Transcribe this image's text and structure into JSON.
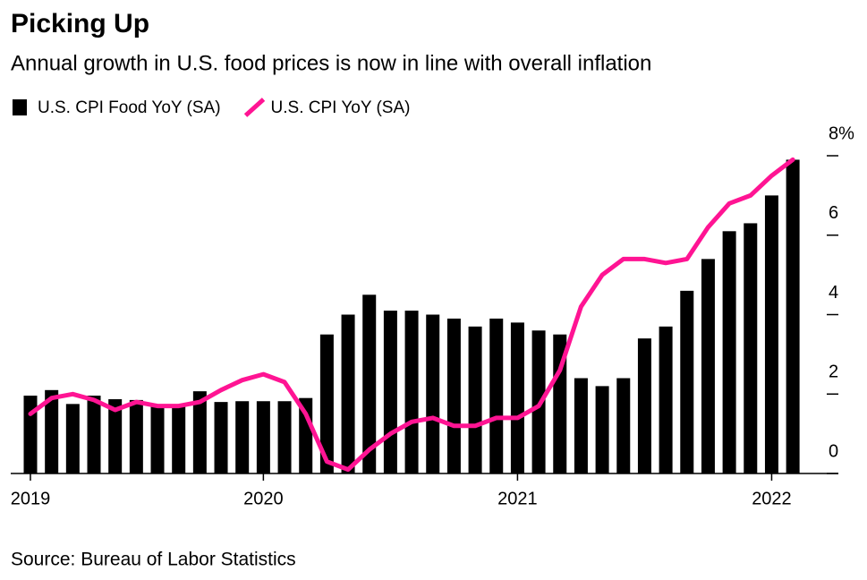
{
  "chart_data": {
    "type": "bar_line",
    "title": "Picking Up",
    "subtitle": "Annual growth in U.S. food prices is now in line with overall inflation",
    "source": "Source: Bureau of Labor Statistics",
    "categories": [
      "2019",
      null,
      null,
      null,
      null,
      null,
      null,
      null,
      null,
      null,
      null,
      "2020",
      null,
      null,
      null,
      null,
      null,
      null,
      null,
      null,
      null,
      null,
      null,
      "2021",
      null,
      null,
      null,
      null,
      null,
      null,
      null,
      null,
      null,
      null,
      null,
      "2022",
      null
    ],
    "series": [
      {
        "name": "U.S. CPI Food YoY (SA)",
        "type": "bar",
        "color": "#000000",
        "values": [
          1.96,
          2.1,
          1.75,
          1.96,
          1.87,
          1.85,
          1.73,
          1.73,
          2.07,
          1.8,
          1.82,
          1.82,
          1.82,
          1.9,
          3.5,
          4.0,
          4.5,
          4.1,
          4.1,
          4.0,
          3.9,
          3.7,
          3.9,
          3.8,
          3.6,
          3.5,
          2.4,
          2.2,
          2.4,
          3.4,
          3.7,
          4.6,
          5.4,
          6.1,
          6.3,
          7.0,
          7.9
        ]
      },
      {
        "name": "U.S. CPI YoY (SA)",
        "type": "line",
        "color": "#ff1493",
        "values": [
          1.5,
          1.9,
          2.0,
          1.85,
          1.6,
          1.8,
          1.7,
          1.7,
          1.8,
          2.1,
          2.35,
          2.5,
          2.3,
          1.5,
          0.3,
          0.1,
          0.6,
          1.0,
          1.3,
          1.4,
          1.2,
          1.2,
          1.4,
          1.4,
          1.7,
          2.6,
          4.2,
          5.0,
          5.4,
          5.4,
          5.3,
          5.4,
          6.2,
          6.8,
          7.0,
          7.5,
          7.9
        ]
      }
    ],
    "ylim": [
      0,
      8
    ],
    "yticks": [
      0,
      2,
      4,
      6,
      {
        "value": 8,
        "label": "8%"
      }
    ],
    "y_axis_side": "right"
  }
}
